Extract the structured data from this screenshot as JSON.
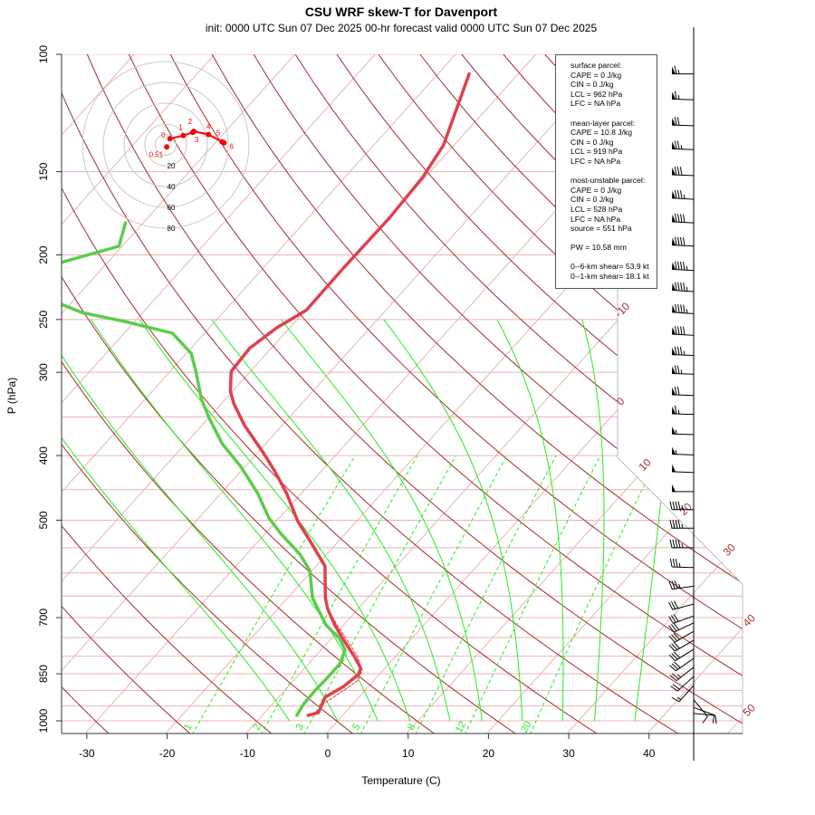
{
  "title": "CSU WRF skew-T for Davenport",
  "subtitle": "init: 0000 UTC Sun 07 Dec 2025    00-hr forecast valid 0000 UTC Sun 07 Dec 2025",
  "info": {
    "surface_header": "surface parcel:",
    "surface": [
      "CAPE = 0 J/kg",
      "CIN = 0 J/kg",
      "LCL = 962 hPa",
      "LFC = NA hPa"
    ],
    "mixed_header": "mean-layer parcel:",
    "mixed": [
      "CAPE = 10.8 J/kg",
      "CIN = 0 J/kg",
      "LCL = 919 hPa",
      "LFC = NA hPa"
    ],
    "mu_header": "most-unstable parcel:",
    "mu": [
      "CAPE = 0 J/kg",
      "CIN = 0 J/kg",
      "LCL = 528 hPa",
      "LFC = NA hPa",
      "source = 551 hPa"
    ],
    "pw": "PW =  10.58 mm",
    "shear6": "0--6-km shear= 53.9 kt",
    "shear1": "0--1-km shear= 18.1 kt"
  },
  "colors": {
    "temperature": "#e0404f",
    "dewpoint": "#5ccc4c",
    "parcel": "#ff3030",
    "dry_adiabat": "#a52a2a",
    "isotherm": "#e8b4b4",
    "isobar": "#e8b4b4",
    "moist_adiabat": "#22ee22",
    "mixing_ratio": "#22ee22",
    "hodograph": "#ff0000"
  },
  "chart_data": [
    {
      "type": "line",
      "name": "skew-T",
      "xlabel": "Temperature (C)",
      "ylabel": "P (hPa)",
      "xlim": [
        -33,
        43
      ],
      "ylim": [
        1050,
        100
      ],
      "yscale": "log",
      "x_ticks": [
        "-30",
        "-20",
        "-10",
        "0",
        "10",
        "20",
        "30",
        "40"
      ],
      "x_tick_values": [
        -30,
        -20,
        -10,
        0,
        10,
        20,
        30,
        40
      ],
      "y_ticks": [
        "100",
        "150",
        "200",
        "250",
        "300",
        "400",
        "500",
        "700",
        "850",
        "1000"
      ],
      "y_tick_values": [
        100,
        150,
        200,
        250,
        300,
        400,
        500,
        700,
        850,
        1000
      ],
      "isotherm_labels": [
        "-10",
        "0",
        "10",
        "20",
        "30",
        "40",
        "50"
      ],
      "isotherm_label_values": [
        -10,
        0,
        10,
        20,
        30,
        40,
        50
      ],
      "mixing_ratio_labels": [
        "1",
        "2",
        "3",
        "5",
        "8",
        "12",
        "20"
      ],
      "mixing_ratio_values": [
        1,
        2,
        3,
        5,
        8,
        12,
        20
      ],
      "moist_adiabat_start_T_1000hPa": [
        -6,
        0,
        5,
        9,
        14,
        18,
        23,
        28,
        32,
        37
      ],
      "temperature": {
        "p": [
          981,
          972,
          922,
          888,
          852,
          834,
          801,
          759,
          718,
          679,
          654,
          586,
          542,
          501,
          456,
          422,
          396,
          361,
          334,
          320,
          299,
          276,
          257,
          242,
          209,
          176,
          153,
          137,
          121,
          107
        ],
        "T": [
          -4.3,
          -3.3,
          -4.2,
          -3.1,
          -2.6,
          -3.0,
          -5.1,
          -8.1,
          -11.1,
          -13.8,
          -15.3,
          -18.9,
          -23.1,
          -27.4,
          -31.8,
          -35.8,
          -39.3,
          -44.6,
          -48.5,
          -50.3,
          -52.4,
          -52.7,
          -51.6,
          -49.9,
          -50.0,
          -49.9,
          -50.3,
          -51.3,
          -53.7,
          -56.1
        ]
      },
      "dewpoint": {
        "p": [
          981,
          946,
          899,
          860,
          821,
          783,
          752,
          718,
          654,
          595,
          562,
          525,
          496,
          456,
          415,
          384,
          350,
          329,
          299,
          281,
          262,
          252,
          244,
          229,
          220,
          209,
          194,
          179
        ],
        "Td": [
          -5.7,
          -6.1,
          -6.2,
          -6.1,
          -6.1,
          -7.0,
          -9.0,
          -12.2,
          -16.9,
          -20.3,
          -23.4,
          -27.9,
          -31.3,
          -35.4,
          -40.6,
          -45.4,
          -50.1,
          -53.0,
          -56.8,
          -59.4,
          -64.0,
          -71.0,
          -77.6,
          -85.3,
          -86.6,
          -87.5,
          -80.4,
          -82.2
        ]
      },
      "parcel": {
        "p": [
          981,
          941,
          871,
          840,
          801,
          752,
          718,
          679
        ],
        "T": [
          -3.7,
          -3.6,
          -2.0,
          -2.6,
          -4.7,
          -8.2,
          -10.8,
          -13.8
        ]
      },
      "wind_barbs": {
        "p": [
          107,
          117,
          128,
          139,
          152,
          165,
          179,
          194,
          211,
          227,
          245,
          264,
          283,
          302,
          325,
          347,
          372,
          399,
          424,
          453,
          482,
          514,
          550,
          589,
          628,
          668,
          696,
          713,
          734,
          757,
          781,
          806,
          831,
          858,
          885,
          930,
          955,
          975
        ],
        "speed_kt": [
          65,
          65,
          70,
          75,
          80,
          85,
          90,
          90,
          95,
          95,
          95,
          90,
          85,
          75,
          70,
          65,
          55,
          55,
          50,
          50,
          45,
          45,
          45,
          35,
          35,
          30,
          30,
          30,
          30,
          30,
          30,
          30,
          25,
          20,
          15,
          10,
          10,
          10
        ],
        "direction_deg": [
          270,
          272,
          272,
          272,
          272,
          273,
          273,
          273,
          273,
          274,
          274,
          273,
          272,
          272,
          272,
          272,
          272,
          272,
          272,
          270,
          270,
          270,
          270,
          272,
          262,
          255,
          250,
          245,
          240,
          240,
          238,
          235,
          232,
          228,
          222,
          140,
          110,
          95
        ]
      }
    },
    {
      "type": "line",
      "name": "hodograph",
      "ring_labels": [
        "20",
        "40",
        "60",
        "80"
      ],
      "ring_values": [
        20,
        40,
        60,
        80
      ],
      "points": [
        {
          "label": "0.51",
          "u": 1,
          "v": -2
        },
        {
          "label": "0",
          "u": 4,
          "v": 6
        },
        {
          "label": "1",
          "u": 17,
          "v": 9
        },
        {
          "label": "2",
          "u": 26,
          "v": 12
        },
        {
          "label": "3",
          "u": 27,
          "v": 13
        },
        {
          "label": "4",
          "u": 41,
          "v": 10
        },
        {
          "label": "5",
          "u": 54,
          "v": 3
        },
        {
          "label": "6",
          "u": 56,
          "v": 2
        }
      ]
    }
  ]
}
